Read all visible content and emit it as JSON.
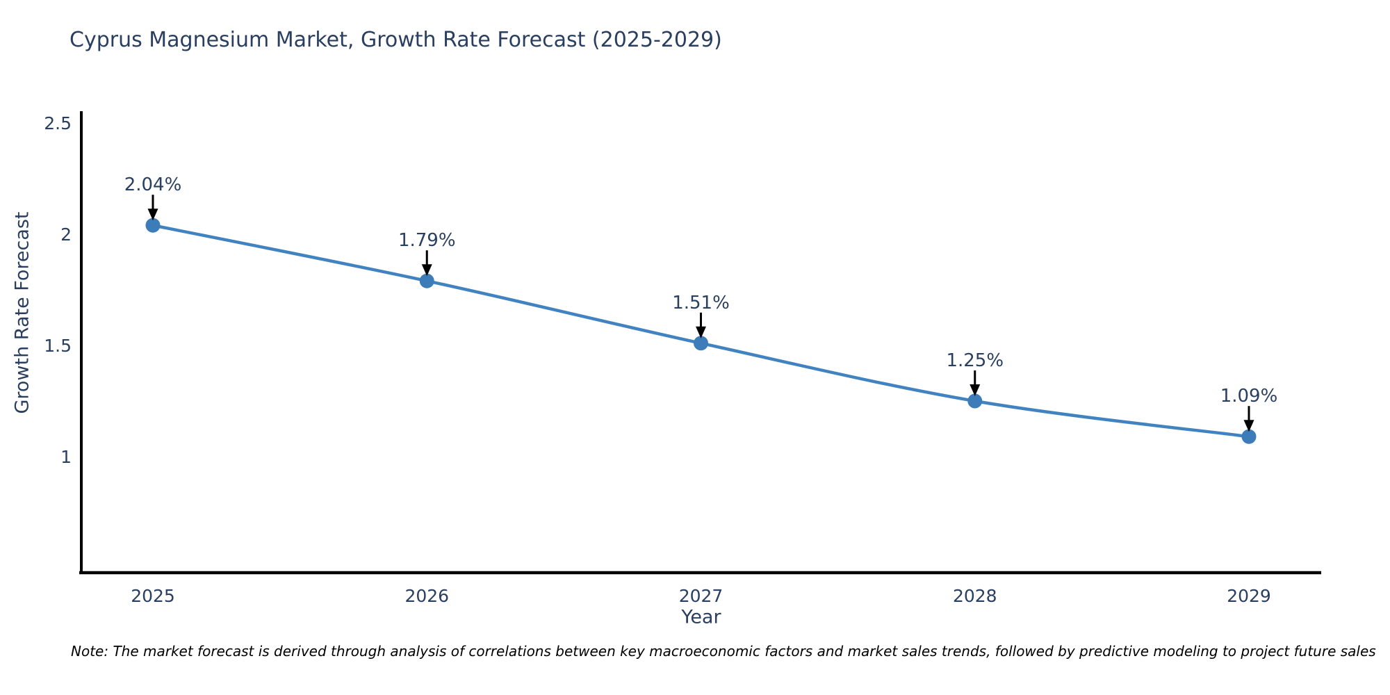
{
  "chart_data": {
    "type": "line",
    "title": "Cyprus Magnesium Market, Growth Rate Forecast (2025-2029)",
    "xlabel": "Year",
    "ylabel": "Growth Rate Forecast",
    "categories": [
      "2025",
      "2026",
      "2027",
      "2028",
      "2029"
    ],
    "values": [
      2.04,
      1.79,
      1.51,
      1.25,
      1.09
    ],
    "point_labels": [
      "2.04%",
      "1.79%",
      "1.51%",
      "1.25%",
      "1.09%"
    ],
    "y_ticks": [
      {
        "value": 2.5,
        "label": "2.5"
      },
      {
        "value": 2.0,
        "label": "2"
      },
      {
        "value": 1.5,
        "label": "1.5"
      },
      {
        "value": 1.0,
        "label": "1"
      }
    ],
    "ylim": [
      0.48,
      2.55
    ],
    "grid": false,
    "legend": "none",
    "note": "Note: The market forecast is derived through analysis of correlations between key macroeconomic factors and market sales trends, followed by predictive modeling to project future sales",
    "colors": {
      "line": "#4183c0",
      "marker": "#3c7cb9",
      "axis": "#000000",
      "arrow": "#000000",
      "label_text": "#2a3f5f",
      "tick_text": "#2a3f5f",
      "note_text": "#000000"
    }
  }
}
